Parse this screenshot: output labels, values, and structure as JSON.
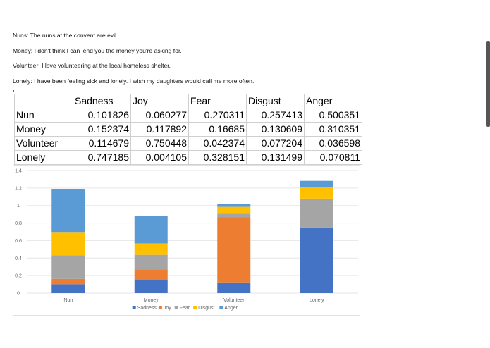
{
  "sentences": [
    "Nuns: The nuns at the convent are evil.",
    "Money: I don't think I can lend you the money you're asking for.",
    "Volunteer: I love volunteering at the local homeless shelter.",
    "Lonely: I have been feeling sick and lonely. I wish my daughters would call me more often."
  ],
  "table": {
    "headers": [
      "Sadness",
      "Joy",
      "Fear",
      "Disgust",
      "Anger"
    ],
    "rows": [
      {
        "label": "Nun",
        "values": [
          "0.101826",
          "0.060277",
          "0.270311",
          "0.257413",
          "0.500351"
        ]
      },
      {
        "label": "Money",
        "values": [
          "0.152374",
          "0.117892",
          "0.16685",
          "0.130609",
          "0.310351"
        ]
      },
      {
        "label": "Volunteer",
        "values": [
          "0.114679",
          "0.750448",
          "0.042374",
          "0.077204",
          "0.036598"
        ]
      },
      {
        "label": "Lonely",
        "values": [
          "0.747185",
          "0.004105",
          "0.328151",
          "0.131499",
          "0.070811"
        ]
      }
    ]
  },
  "colors": {
    "Sadness": "#4472c4",
    "Joy": "#ed7d31",
    "Fear": "#a5a5a5",
    "Disgust": "#ffc000",
    "Anger": "#5b9bd5",
    "grid": "#e6e6e6",
    "axis_text": "#666666"
  },
  "chart_data": {
    "type": "bar",
    "stacked": true,
    "title": "",
    "xlabel": "",
    "ylabel": "",
    "categories": [
      "Nun",
      "Money",
      "Volunteer",
      "Lonely"
    ],
    "ylim": [
      0,
      1.4
    ],
    "yticks": [
      "0",
      "0.2",
      "0.4",
      "0.6",
      "0.8",
      "1",
      "1.2",
      "1.4"
    ],
    "grid": true,
    "legend_position": "bottom",
    "series": [
      {
        "name": "Sadness",
        "values": [
          0.101826,
          0.152374,
          0.114679,
          0.747185
        ]
      },
      {
        "name": "Joy",
        "values": [
          0.060277,
          0.117892,
          0.750448,
          0.004105
        ]
      },
      {
        "name": "Fear",
        "values": [
          0.270311,
          0.16685,
          0.042374,
          0.328151
        ]
      },
      {
        "name": "Disgust",
        "values": [
          0.257413,
          0.130609,
          0.077204,
          0.131499
        ]
      },
      {
        "name": "Anger",
        "values": [
          0.500351,
          0.310351,
          0.036598,
          0.070811
        ]
      }
    ]
  }
}
